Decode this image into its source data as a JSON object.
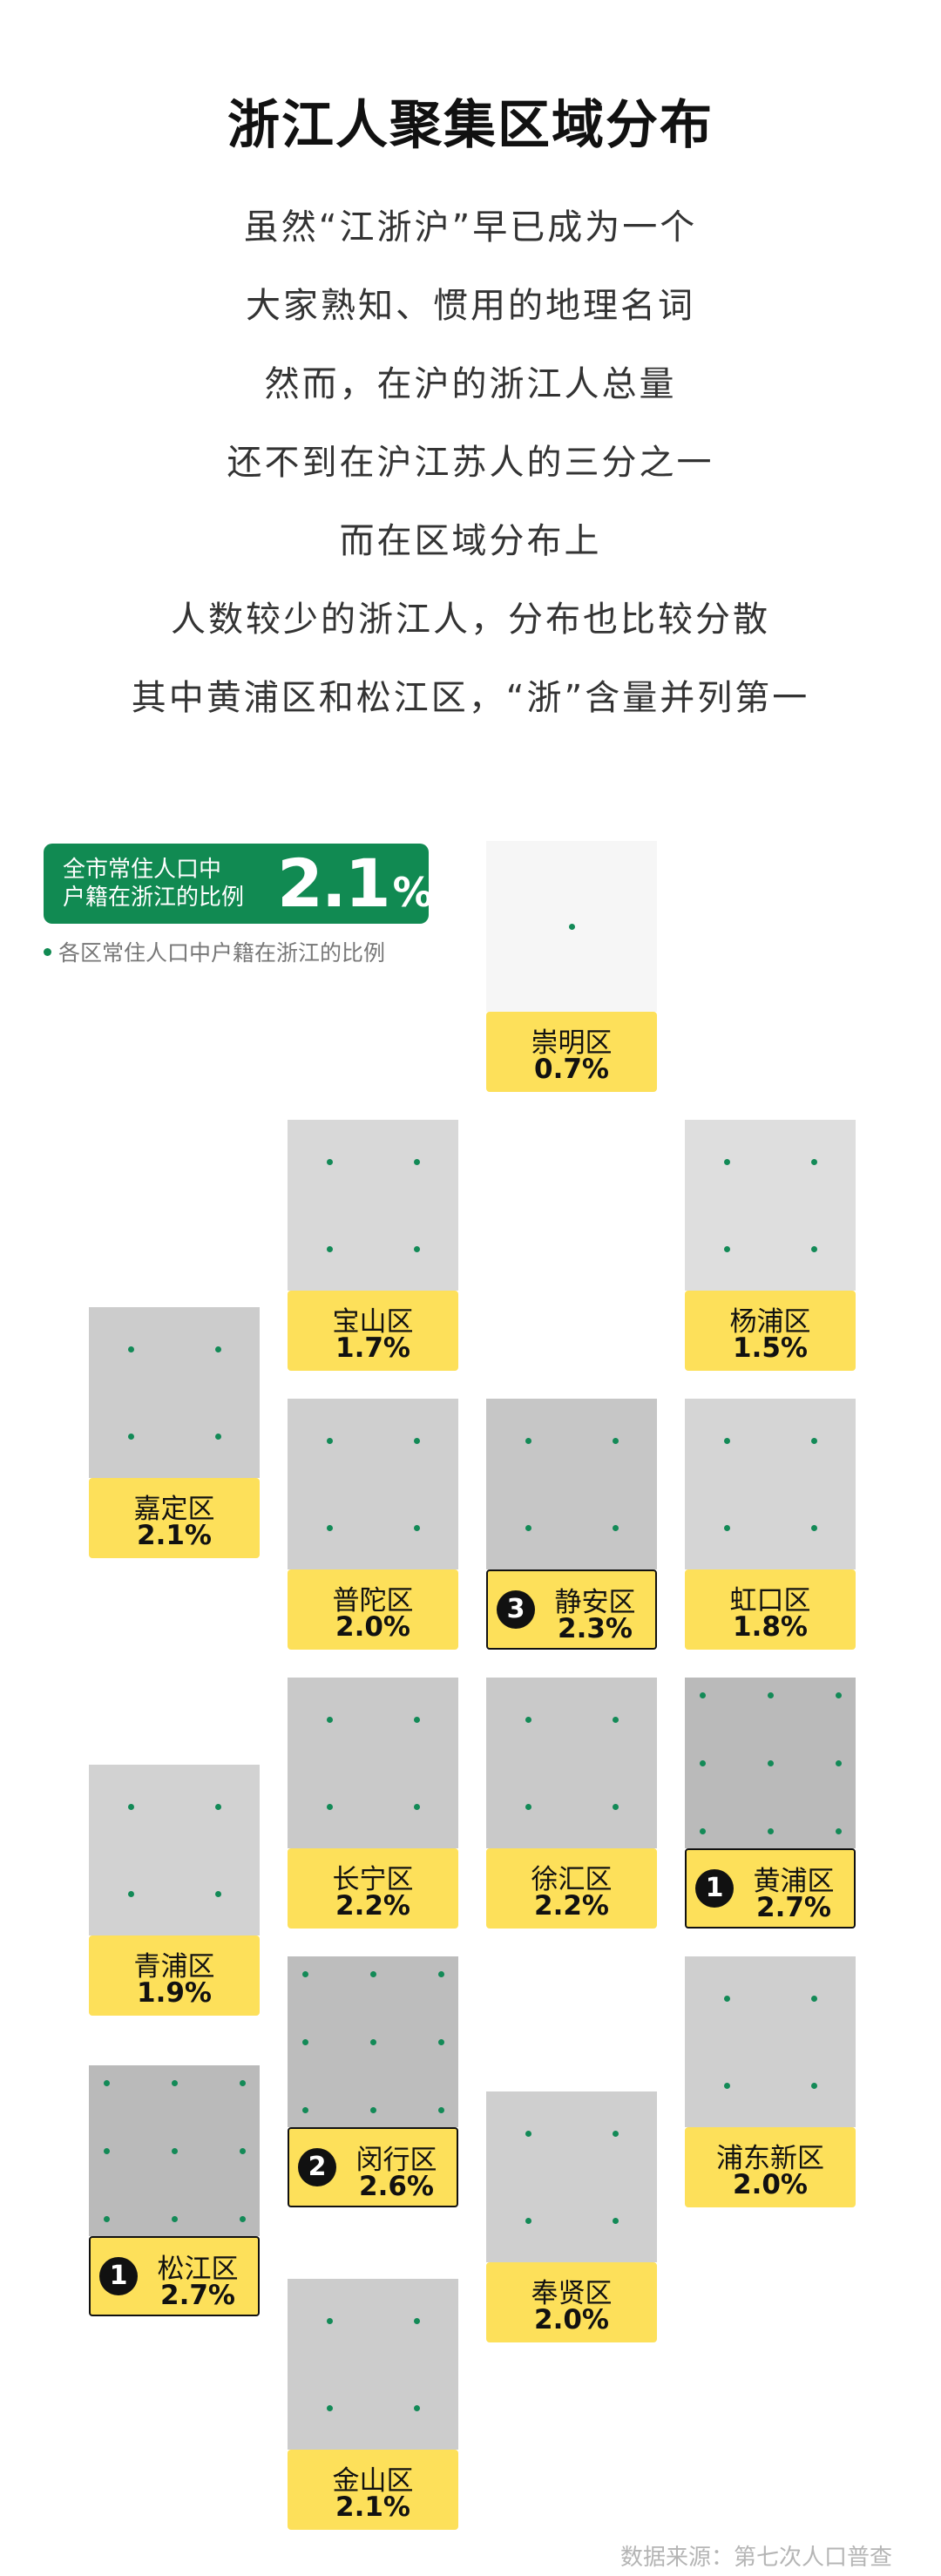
{
  "title": "浙江人聚集区域分布",
  "intro": [
    "虽然“江浙沪”早已成为一个",
    "大家熟知、惯用的地理名词",
    "然而，在沪的浙江人总量",
    "还不到在沪江苏人的三分之一",
    "而在区域分布上",
    "人数较少的浙江人，分布也比较分散",
    "其中黄浦区和松江区，“浙”含量并列第一"
  ],
  "summary": {
    "label": "全市常住人口中\n户籍在浙江的比例",
    "value": "2.1",
    "unit": "%"
  },
  "legend": "各区常住人口中户籍在浙江的比例",
  "source": "数据来源：第七次人口普查",
  "colors": {
    "green": "#118a52",
    "dot": "#138a57",
    "label_bg": "#fde05a"
  },
  "chart_data": {
    "type": "tile-map",
    "unit": "%",
    "encoding": "each tile shows one district; number of dots and tile darkness scale with the share",
    "overall": 2.1,
    "districts": [
      {
        "name": "崇明区",
        "value": 0.7,
        "display": "0.7%",
        "dots": 1,
        "rank": null
      },
      {
        "name": "宝山区",
        "value": 1.7,
        "display": "1.7%",
        "dots": 4,
        "rank": null
      },
      {
        "name": "杨浦区",
        "value": 1.5,
        "display": "1.5%",
        "dots": 4,
        "rank": null
      },
      {
        "name": "嘉定区",
        "value": 2.1,
        "display": "2.1%",
        "dots": 4,
        "rank": null
      },
      {
        "name": "普陀区",
        "value": 2.0,
        "display": "2.0%",
        "dots": 4,
        "rank": null
      },
      {
        "name": "静安区",
        "value": 2.3,
        "display": "2.3%",
        "dots": 4,
        "rank": "3"
      },
      {
        "name": "虹口区",
        "value": 1.8,
        "display": "1.8%",
        "dots": 4,
        "rank": null
      },
      {
        "name": "长宁区",
        "value": 2.2,
        "display": "2.2%",
        "dots": 4,
        "rank": null
      },
      {
        "name": "徐汇区",
        "value": 2.2,
        "display": "2.2%",
        "dots": 4,
        "rank": null
      },
      {
        "name": "黄浦区",
        "value": 2.7,
        "display": "2.7%",
        "dots": 9,
        "rank": "1"
      },
      {
        "name": "青浦区",
        "value": 1.9,
        "display": "1.9%",
        "dots": 4,
        "rank": null
      },
      {
        "name": "闵行区",
        "value": 2.6,
        "display": "2.6%",
        "dots": 9,
        "rank": "2"
      },
      {
        "name": "浦东新区",
        "value": 2.0,
        "display": "2.0%",
        "dots": 4,
        "rank": null
      },
      {
        "name": "松江区",
        "value": 2.7,
        "display": "2.7%",
        "dots": 9,
        "rank": "1"
      },
      {
        "name": "奉贤区",
        "value": 2.0,
        "display": "2.0%",
        "dots": 4,
        "rank": null
      },
      {
        "name": "金山区",
        "value": 2.1,
        "display": "2.1%",
        "dots": 4,
        "rank": null
      }
    ]
  }
}
